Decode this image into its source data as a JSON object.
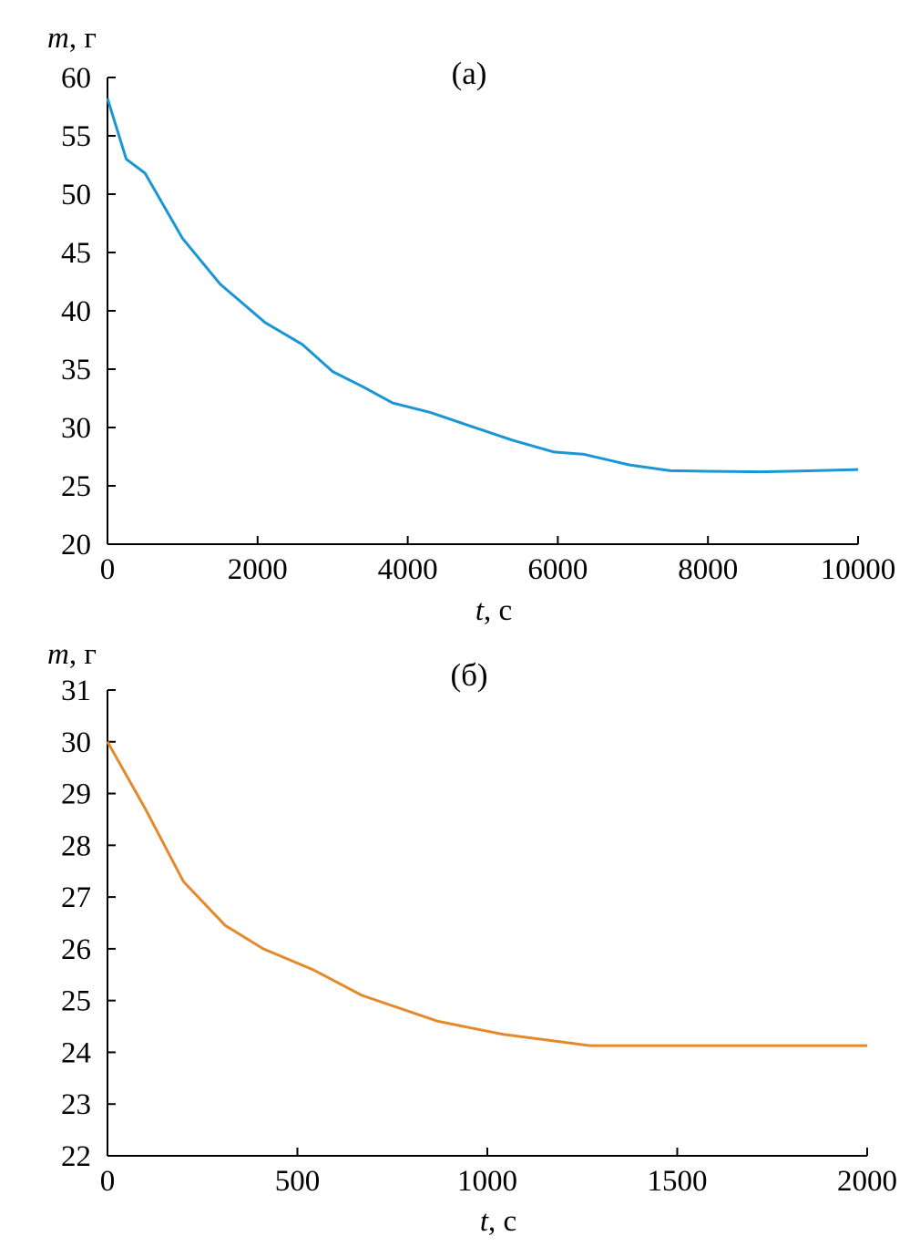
{
  "chart_data": [
    {
      "type": "line",
      "title": "(а)",
      "xlabel": {
        "var": "t",
        "unit": ", с"
      },
      "ylabel": {
        "var": "m",
        "unit": ", г"
      },
      "xlim": [
        0,
        10000
      ],
      "ylim": [
        20,
        60
      ],
      "xticks": [
        0,
        2000,
        4000,
        6000,
        8000,
        10000
      ],
      "yticks": [
        20,
        25,
        30,
        35,
        40,
        45,
        50,
        55,
        60
      ],
      "grid": false,
      "series": [
        {
          "color": "#1a96d4",
          "x": [
            0,
            250,
            500,
            1000,
            1500,
            2100,
            2600,
            3000,
            3400,
            3800,
            4300,
            4800,
            5400,
            5950,
            6350,
            6950,
            7500,
            8000,
            8700,
            9400,
            10000
          ],
          "y": [
            58.2,
            53.0,
            51.8,
            46.2,
            42.3,
            39.0,
            37.1,
            34.8,
            33.5,
            32.1,
            31.3,
            30.2,
            28.9,
            27.9,
            27.7,
            26.8,
            26.3,
            26.25,
            26.2,
            26.3,
            26.4
          ]
        }
      ]
    },
    {
      "type": "line",
      "title": "(б)",
      "xlabel": {
        "var": "t",
        "unit": ", с"
      },
      "ylabel": {
        "var": "m",
        "unit": ", г"
      },
      "xlim": [
        0,
        2000
      ],
      "ylim": [
        22,
        31
      ],
      "xticks": [
        0,
        500,
        1000,
        1500,
        2000
      ],
      "yticks": [
        22,
        23,
        24,
        25,
        26,
        27,
        28,
        29,
        30,
        31
      ],
      "grid": false,
      "series": [
        {
          "color": "#e48a2c",
          "x": [
            0,
            100,
            200,
            310,
            410,
            540,
            670,
            870,
            1040,
            1270,
            1500,
            2000
          ],
          "y": [
            30.0,
            28.7,
            27.3,
            26.45,
            26.0,
            25.6,
            25.1,
            24.6,
            24.35,
            24.13,
            24.13,
            24.13
          ]
        }
      ]
    }
  ]
}
